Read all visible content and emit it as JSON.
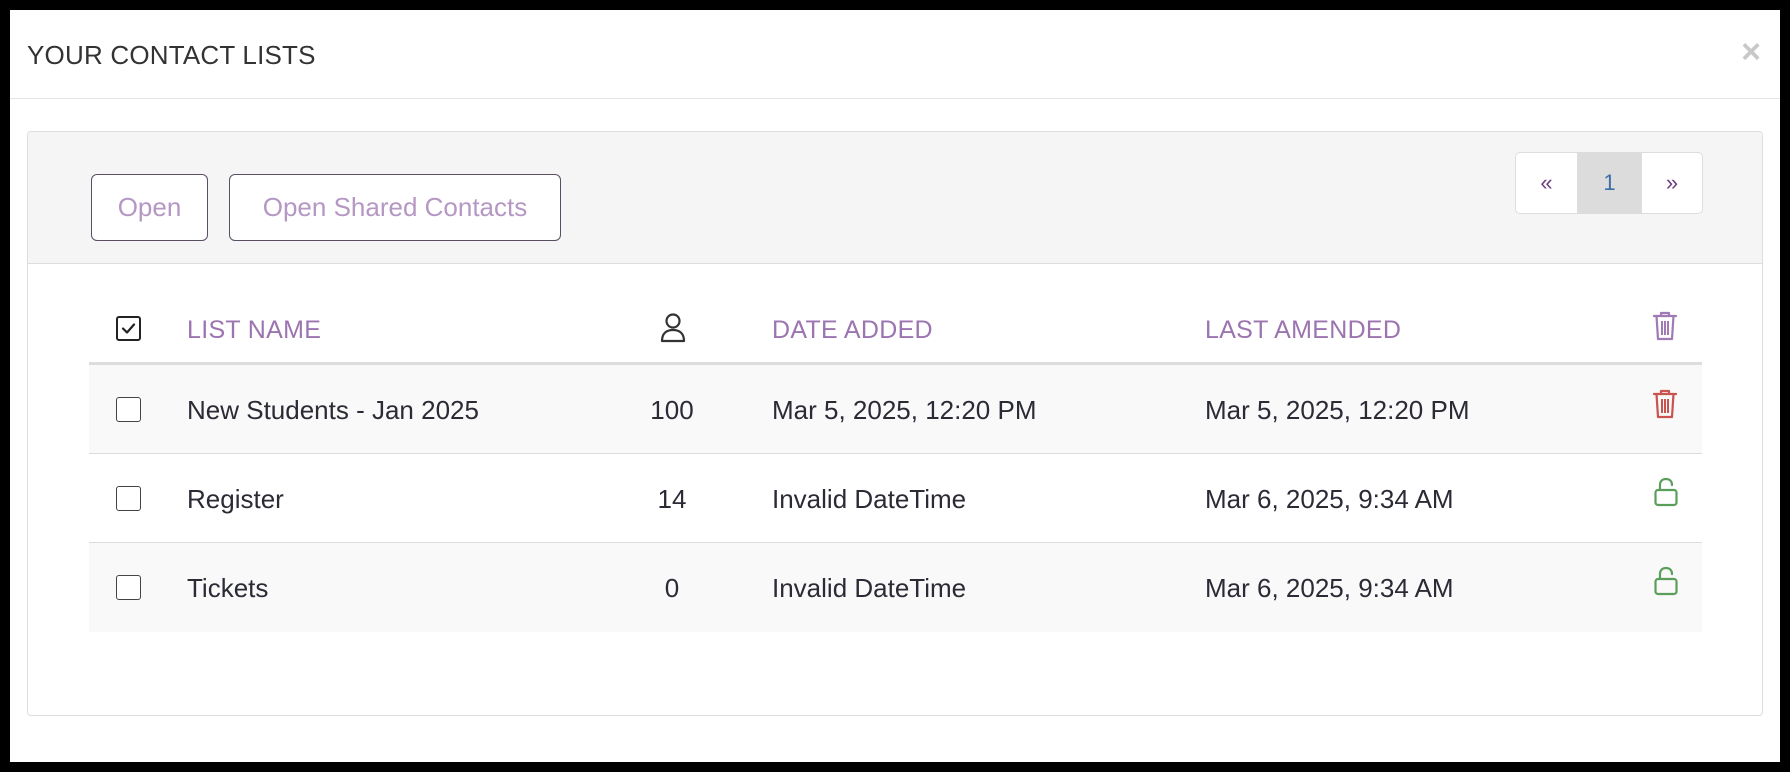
{
  "modal": {
    "title": "YOUR CONTACT LISTS",
    "close_label": "×"
  },
  "toolbar": {
    "open_label": "Open",
    "open_shared_label": "Open Shared Contacts"
  },
  "pagination": {
    "prev": "«",
    "current": "1",
    "next": "»"
  },
  "table": {
    "headers": {
      "list_name": "LIST NAME",
      "count_icon": "person-icon",
      "date_added": "DATE ADDED",
      "last_amended": "LAST AMENDED",
      "action_icon": "trash-icon"
    },
    "rows": [
      {
        "name": "New Students - Jan 2025",
        "count": "100",
        "date_added": "Mar 5, 2025, 12:20 PM",
        "last_amended": "Mar 5, 2025, 12:20 PM",
        "action_icon": "trash-icon",
        "checked": false
      },
      {
        "name": "Register",
        "count": "14",
        "date_added": "Invalid DateTime",
        "last_amended": "Mar 6, 2025, 9:34 AM",
        "action_icon": "lock-icon",
        "checked": false
      },
      {
        "name": "Tickets",
        "count": "0",
        "date_added": "Invalid DateTime",
        "last_amended": "Mar 6, 2025, 9:34 AM",
        "action_icon": "lock-icon",
        "checked": false
      }
    ]
  },
  "colors": {
    "accent_purple": "#9b74b0",
    "delete_red": "#c9534f",
    "lock_green": "#5a9e5a",
    "header_trash": "#a07ab5"
  }
}
